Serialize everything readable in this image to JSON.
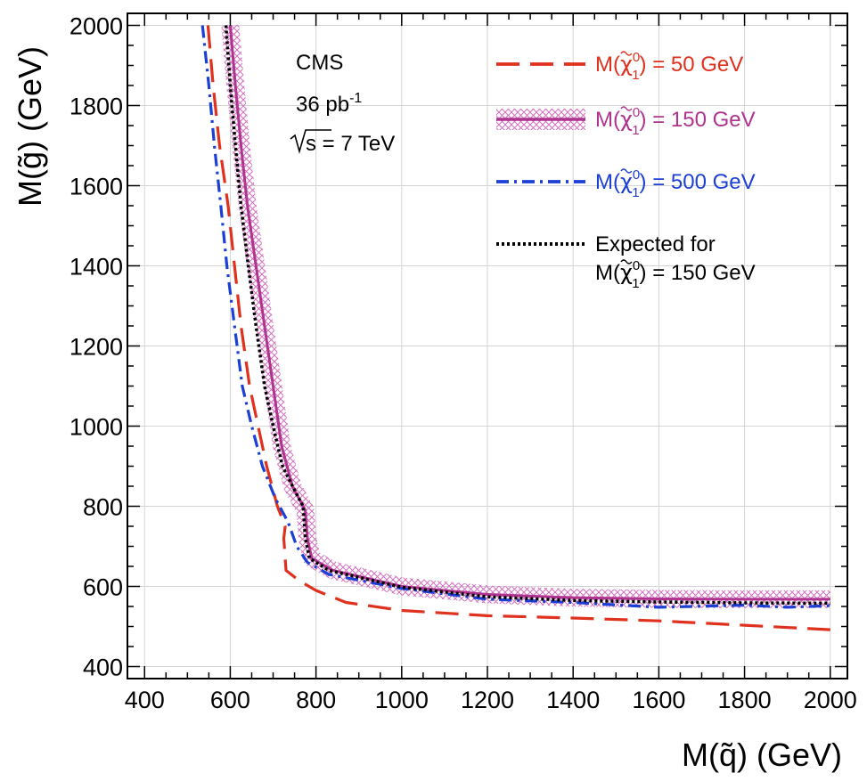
{
  "chart_data": {
    "type": "line",
    "xlabel": "M(q̃)  (GeV)",
    "ylabel": "M(g̃)  (GeV)",
    "xlim": [
      360,
      2040
    ],
    "ylim": [
      370,
      2030
    ],
    "x_ticks": [
      400,
      600,
      800,
      1000,
      1200,
      1400,
      1600,
      1800,
      2000
    ],
    "y_ticks": [
      400,
      600,
      800,
      1000,
      1200,
      1400,
      1600,
      1800,
      2000
    ],
    "grid": true,
    "legend_position": "top-right",
    "annotations": {
      "experiment": "CMS",
      "lumi": "36 pb",
      "lumi_sup": "-1",
      "energy": "s = 7 TeV"
    },
    "series": [
      {
        "name": "M(χ̃₁⁰) = 50 GeV",
        "label_prefix": "M(",
        "label_suffix": ") = 50 GeV",
        "color": "#e0301e",
        "style": "dashed",
        "points": [
          [
            548,
            2000
          ],
          [
            560,
            1850
          ],
          [
            575,
            1700
          ],
          [
            595,
            1550
          ],
          [
            610,
            1400
          ],
          [
            625,
            1250
          ],
          [
            645,
            1100
          ],
          [
            665,
            1000
          ],
          [
            685,
            900
          ],
          [
            710,
            800
          ],
          [
            728,
            750
          ],
          [
            725,
            720
          ],
          [
            730,
            640
          ],
          [
            760,
            615
          ],
          [
            800,
            590
          ],
          [
            870,
            560
          ],
          [
            1000,
            540
          ],
          [
            1200,
            527
          ],
          [
            1400,
            521
          ],
          [
            1600,
            514
          ],
          [
            1800,
            503
          ],
          [
            2000,
            492
          ]
        ]
      },
      {
        "name": "M(χ̃₁⁰) = 150 GeV",
        "label_prefix": "M(",
        "label_suffix": ") = 150 GeV",
        "color": "#b0338f",
        "band_color": "#d88ac8",
        "style": "solid-band",
        "points": [
          [
            600,
            2000
          ],
          [
            612,
            1850
          ],
          [
            625,
            1700
          ],
          [
            640,
            1550
          ],
          [
            660,
            1400
          ],
          [
            680,
            1250
          ],
          [
            700,
            1100
          ],
          [
            720,
            950
          ],
          [
            745,
            850
          ],
          [
            775,
            790
          ],
          [
            780,
            720
          ],
          [
            790,
            670
          ],
          [
            840,
            640
          ],
          [
            1000,
            600
          ],
          [
            1200,
            580
          ],
          [
            1400,
            572
          ],
          [
            1600,
            569
          ],
          [
            1800,
            568
          ],
          [
            2000,
            568
          ]
        ]
      },
      {
        "name": "M(χ̃₁⁰) = 500 GeV",
        "label_prefix": "M(",
        "label_suffix": ") = 500 GeV",
        "color": "#1c3fd6",
        "style": "dashdot",
        "points": [
          [
            535,
            2000
          ],
          [
            550,
            1850
          ],
          [
            563,
            1700
          ],
          [
            578,
            1550
          ],
          [
            592,
            1400
          ],
          [
            610,
            1250
          ],
          [
            628,
            1100
          ],
          [
            650,
            1000
          ],
          [
            675,
            900
          ],
          [
            705,
            820
          ],
          [
            735,
            760
          ],
          [
            755,
            700
          ],
          [
            780,
            660
          ],
          [
            830,
            630
          ],
          [
            1000,
            595
          ],
          [
            1200,
            568
          ],
          [
            1400,
            560
          ],
          [
            1600,
            548
          ],
          [
            1800,
            553
          ],
          [
            1900,
            548
          ],
          [
            2000,
            552
          ]
        ]
      },
      {
        "name": "Expected for M(χ̃₁⁰) = 150 GeV",
        "label_line1": "Expected for",
        "label_prefix": "M(",
        "label_suffix": ") = 150 GeV",
        "color": "#000000",
        "style": "dotted",
        "points": [
          [
            590,
            2000
          ],
          [
            600,
            1850
          ],
          [
            612,
            1700
          ],
          [
            625,
            1550
          ],
          [
            642,
            1400
          ],
          [
            660,
            1250
          ],
          [
            680,
            1100
          ],
          [
            700,
            1000
          ],
          [
            722,
            900
          ],
          [
            750,
            840
          ],
          [
            770,
            800
          ],
          [
            775,
            720
          ],
          [
            785,
            670
          ],
          [
            830,
            640
          ],
          [
            1000,
            598
          ],
          [
            1200,
            574
          ],
          [
            1400,
            565
          ],
          [
            1600,
            561
          ],
          [
            1800,
            559
          ],
          [
            2000,
            558
          ]
        ]
      }
    ]
  }
}
